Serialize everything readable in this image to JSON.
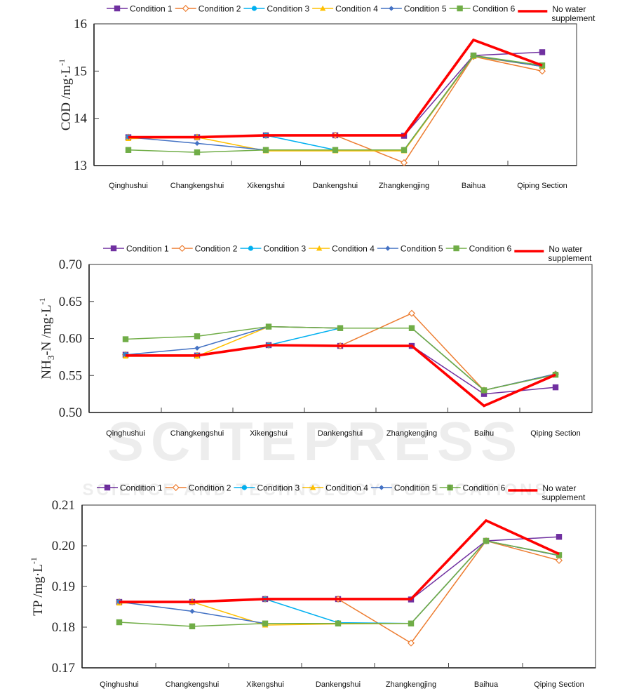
{
  "legend": {
    "items": [
      {
        "name": "Condition 1",
        "color": "#7030A0",
        "marker": "square-filled"
      },
      {
        "name": "Condition 2",
        "color": "#ED7D31",
        "marker": "diamond-open"
      },
      {
        "name": "Condition 3",
        "color": "#00B0F0",
        "marker": "circle-filled"
      },
      {
        "name": "Condition 4",
        "color": "#FFC000",
        "marker": "triangle-filled"
      },
      {
        "name": "Condition 5",
        "color": "#4472C4",
        "marker": "diamond-filled"
      },
      {
        "name": "Condition 6",
        "color": "#70AD47",
        "marker": "square-filled"
      },
      {
        "name": "No water supplement",
        "name_line1": "No      water",
        "name_line2": "supplement",
        "color": "#FF0000",
        "marker": "none"
      }
    ]
  },
  "watermark": {
    "text_large": "SCITEPRESS",
    "text_small": "SCIENCE AND TECHNOLOGY PUBLICATIONS"
  },
  "chart_data": [
    {
      "type": "line",
      "title": "",
      "ylabel": "COD /mg·L-1",
      "ylabel_main": "COD /mg·L",
      "ylabel_sup": "-1",
      "xlabel": "",
      "ylim": [
        13,
        16
      ],
      "yticks": [
        "13",
        "14",
        "15",
        "16"
      ],
      "ytick_values": [
        13,
        14,
        15,
        16
      ],
      "categories": [
        "Qinghushui",
        "Changkengshui",
        "Xikengshui",
        "Dankengshui",
        "Zhangkengjing",
        "Baihua",
        "Qiping Section"
      ],
      "grid": false,
      "legend_position": "top",
      "series": [
        {
          "name": "Condition 1",
          "values": [
            13.6,
            13.6,
            13.64,
            13.64,
            13.63,
            15.33,
            15.4
          ]
        },
        {
          "name": "Condition 2",
          "values": [
            13.6,
            13.6,
            13.64,
            13.64,
            13.06,
            15.31,
            15.0
          ]
        },
        {
          "name": "Condition 3",
          "values": [
            13.6,
            13.6,
            13.64,
            13.33,
            13.33,
            15.32,
            15.1
          ]
        },
        {
          "name": "Condition 4",
          "values": [
            13.57,
            13.6,
            13.31,
            13.31,
            13.31,
            15.31,
            15.1
          ]
        },
        {
          "name": "Condition 5",
          "values": [
            13.6,
            13.47,
            13.33,
            13.33,
            13.33,
            15.32,
            15.1
          ]
        },
        {
          "name": "Condition 6",
          "values": [
            13.33,
            13.28,
            13.33,
            13.33,
            13.33,
            15.33,
            15.12
          ]
        },
        {
          "name": "No water supplement",
          "values": [
            13.6,
            13.6,
            13.64,
            13.64,
            13.64,
            15.66,
            15.12
          ]
        }
      ]
    },
    {
      "type": "line",
      "title": "",
      "ylabel": "NH3-N /mg·L-1",
      "ylabel_main": "NH",
      "ylabel_sub": "3",
      "ylabel_rest": "-N /mg·L",
      "ylabel_sup": "-1",
      "xlabel": "",
      "ylim": [
        0.5,
        0.7
      ],
      "yticks": [
        "0.50",
        "0.55",
        "0.60",
        "0.65",
        "0.70"
      ],
      "ytick_values": [
        0.5,
        0.55,
        0.6,
        0.65,
        0.7
      ],
      "categories": [
        "Qinghushui",
        "Changkengshui",
        "Xikengshui",
        "Dankengshui",
        "Zhangkengjing",
        "Baihu",
        "Qiping Section"
      ],
      "grid": false,
      "legend_position": "top",
      "series": [
        {
          "name": "Condition 1",
          "values": [
            0.578,
            0.577,
            0.591,
            0.59,
            0.59,
            0.525,
            0.534
          ]
        },
        {
          "name": "Condition 2",
          "values": [
            0.578,
            0.577,
            0.591,
            0.59,
            0.634,
            0.53,
            0.552
          ]
        },
        {
          "name": "Condition 3",
          "values": [
            0.578,
            0.577,
            0.591,
            0.614,
            0.614,
            0.53,
            0.552
          ]
        },
        {
          "name": "Condition 4",
          "values": [
            0.576,
            0.576,
            0.616,
            0.614,
            0.614,
            0.53,
            0.552
          ]
        },
        {
          "name": "Condition 5",
          "values": [
            0.578,
            0.587,
            0.616,
            0.614,
            0.614,
            0.53,
            0.552
          ]
        },
        {
          "name": "Condition 6",
          "values": [
            0.599,
            0.603,
            0.616,
            0.614,
            0.614,
            0.53,
            0.551
          ]
        },
        {
          "name": "No water supplement",
          "values": [
            0.577,
            0.577,
            0.591,
            0.59,
            0.59,
            0.509,
            0.551
          ]
        }
      ]
    },
    {
      "type": "line",
      "title": "",
      "ylabel": "TP /mg·L-1",
      "ylabel_main": "TP /mg·L",
      "ylabel_sup": "-1",
      "xlabel": "",
      "ylim": [
        0.17,
        0.21
      ],
      "yticks": [
        "0.17",
        "0.18",
        "0.19",
        "0.20",
        "0.21"
      ],
      "ytick_values": [
        0.17,
        0.18,
        0.19,
        0.2,
        0.21
      ],
      "categories": [
        "Qinghushui",
        "Changkengshui",
        "Xikengshui",
        "Dankengshui",
        "Zhangkengjing",
        "Baihua",
        "Qiping Section"
      ],
      "grid": false,
      "legend_position": "top",
      "series": [
        {
          "name": "Condition 1",
          "values": [
            0.1862,
            0.1862,
            0.1869,
            0.1869,
            0.1868,
            0.2012,
            0.2022
          ]
        },
        {
          "name": "Condition 2",
          "values": [
            0.1862,
            0.1862,
            0.1869,
            0.1869,
            0.1761,
            0.2012,
            0.1964
          ]
        },
        {
          "name": "Condition 3",
          "values": [
            0.1862,
            0.1862,
            0.1869,
            0.1811,
            0.1809,
            0.2012,
            0.1976
          ]
        },
        {
          "name": "Condition 4",
          "values": [
            0.1859,
            0.1862,
            0.1805,
            0.1808,
            0.1809,
            0.2012,
            0.1976
          ]
        },
        {
          "name": "Condition 5",
          "values": [
            0.1862,
            0.1839,
            0.1809,
            0.1809,
            0.1809,
            0.2012,
            0.1976
          ]
        },
        {
          "name": "Condition 6",
          "values": [
            0.1812,
            0.1802,
            0.1809,
            0.1809,
            0.1809,
            0.2012,
            0.1977
          ]
        },
        {
          "name": "No water supplement",
          "values": [
            0.1862,
            0.1862,
            0.1869,
            0.1869,
            0.1869,
            0.2062,
            0.198
          ]
        }
      ]
    }
  ]
}
